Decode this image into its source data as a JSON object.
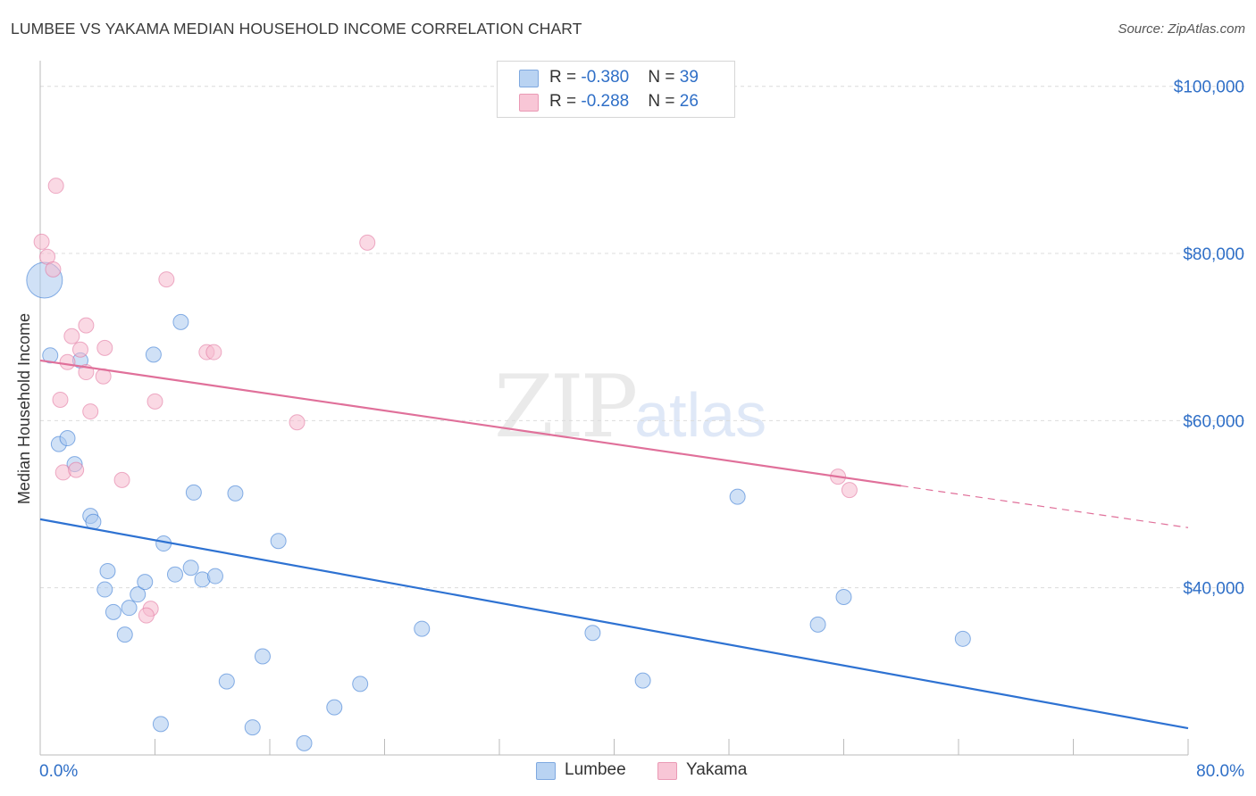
{
  "header": {
    "title": "LUMBEE VS YAKAMA MEDIAN HOUSEHOLD INCOME CORRELATION CHART",
    "source": "Source: ZipAtlas.com"
  },
  "legend": {
    "rows": [
      {
        "r_label": "R = ",
        "r_value": "-0.380",
        "n_label": "N = ",
        "n_value": "39"
      },
      {
        "r_label": "R = ",
        "r_value": "-0.288",
        "n_label": "N = ",
        "n_value": "26"
      }
    ]
  },
  "watermark": {
    "zip": "ZIP",
    "atlas": "atlas"
  },
  "chart_data": {
    "type": "scatter",
    "title": "LUMBEE VS YAKAMA MEDIAN HOUSEHOLD INCOME CORRELATION CHART",
    "xlabel": "",
    "ylabel": "Median Household Income",
    "xlim": [
      0,
      80
    ],
    "ylim": [
      20000,
      102000
    ],
    "x_tick_labels": [
      "0.0%",
      "80.0%"
    ],
    "y_ticks": [
      40000,
      60000,
      80000,
      100000
    ],
    "y_tick_labels": [
      "$40,000",
      "$60,000",
      "$80,000",
      "$100,000"
    ],
    "grid": true,
    "legend_position": "bottom-center",
    "colors": {
      "Lumbee": "#2e72d2",
      "Yakama": "#e0709a"
    },
    "series": [
      {
        "name": "Lumbee",
        "color": "#2e72d2",
        "fill": "#aac8ee",
        "r": -0.38,
        "n": 39,
        "trend": {
          "x": [
            0,
            80
          ],
          "y": [
            48200,
            23200
          ],
          "dashed_from": null
        },
        "points": [
          {
            "x": 0.3,
            "y": 76800,
            "big": true
          },
          {
            "x": 0.7,
            "y": 67800
          },
          {
            "x": 2.8,
            "y": 67200
          },
          {
            "x": 1.3,
            "y": 57200
          },
          {
            "x": 1.9,
            "y": 57900
          },
          {
            "x": 2.4,
            "y": 54800
          },
          {
            "x": 3.5,
            "y": 48600
          },
          {
            "x": 3.7,
            "y": 47900
          },
          {
            "x": 4.7,
            "y": 42000
          },
          {
            "x": 4.5,
            "y": 39800
          },
          {
            "x": 5.1,
            "y": 37100
          },
          {
            "x": 6.2,
            "y": 37600
          },
          {
            "x": 5.9,
            "y": 34400
          },
          {
            "x": 6.8,
            "y": 39200
          },
          {
            "x": 7.3,
            "y": 40700
          },
          {
            "x": 7.9,
            "y": 67900
          },
          {
            "x": 8.6,
            "y": 45300
          },
          {
            "x": 9.4,
            "y": 41600
          },
          {
            "x": 9.8,
            "y": 71800
          },
          {
            "x": 10.5,
            "y": 42400
          },
          {
            "x": 10.7,
            "y": 51400
          },
          {
            "x": 11.3,
            "y": 41000
          },
          {
            "x": 12.2,
            "y": 41400
          },
          {
            "x": 13.6,
            "y": 51300
          },
          {
            "x": 16.6,
            "y": 45600
          },
          {
            "x": 13.0,
            "y": 28800
          },
          {
            "x": 15.5,
            "y": 31800
          },
          {
            "x": 8.4,
            "y": 23700
          },
          {
            "x": 14.8,
            "y": 23300
          },
          {
            "x": 18.4,
            "y": 21400
          },
          {
            "x": 20.5,
            "y": 25700
          },
          {
            "x": 22.3,
            "y": 28500
          },
          {
            "x": 26.6,
            "y": 35100
          },
          {
            "x": 38.5,
            "y": 34600
          },
          {
            "x": 42.0,
            "y": 28900
          },
          {
            "x": 48.6,
            "y": 50900
          },
          {
            "x": 54.2,
            "y": 35600
          },
          {
            "x": 56.0,
            "y": 38900
          },
          {
            "x": 64.3,
            "y": 33900
          }
        ]
      },
      {
        "name": "Yakama",
        "color": "#e0709a",
        "fill": "#f6bacd",
        "r": -0.288,
        "n": 26,
        "trend": {
          "x": [
            0,
            80
          ],
          "y": [
            67200,
            47200
          ],
          "dashed_from": 60.0
        },
        "points": [
          {
            "x": 0.1,
            "y": 81400
          },
          {
            "x": 1.1,
            "y": 88100
          },
          {
            "x": 0.5,
            "y": 79600
          },
          {
            "x": 0.9,
            "y": 78100
          },
          {
            "x": 2.2,
            "y": 70100
          },
          {
            "x": 3.2,
            "y": 71400
          },
          {
            "x": 1.9,
            "y": 67000
          },
          {
            "x": 2.8,
            "y": 68500
          },
          {
            "x": 3.2,
            "y": 65800
          },
          {
            "x": 4.5,
            "y": 68700
          },
          {
            "x": 4.4,
            "y": 65300
          },
          {
            "x": 1.4,
            "y": 62500
          },
          {
            "x": 3.5,
            "y": 61100
          },
          {
            "x": 1.6,
            "y": 53800
          },
          {
            "x": 2.5,
            "y": 54100
          },
          {
            "x": 5.7,
            "y": 52900
          },
          {
            "x": 7.7,
            "y": 37500
          },
          {
            "x": 7.4,
            "y": 36700
          },
          {
            "x": 8.0,
            "y": 62300
          },
          {
            "x": 8.8,
            "y": 76900
          },
          {
            "x": 11.6,
            "y": 68200
          },
          {
            "x": 12.1,
            "y": 68200
          },
          {
            "x": 17.9,
            "y": 59800
          },
          {
            "x": 22.8,
            "y": 81300
          },
          {
            "x": 55.6,
            "y": 53300
          },
          {
            "x": 56.4,
            "y": 51700
          }
        ]
      }
    ]
  }
}
